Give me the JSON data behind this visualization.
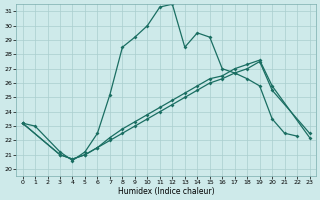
{
  "xlabel": "Humidex (Indice chaleur)",
  "xlim": [
    -0.5,
    23.5
  ],
  "ylim": [
    19.5,
    31.5
  ],
  "xticks": [
    0,
    1,
    2,
    3,
    4,
    5,
    6,
    7,
    8,
    9,
    10,
    11,
    12,
    13,
    14,
    15,
    16,
    17,
    18,
    19,
    20,
    21,
    22,
    23
  ],
  "yticks": [
    20,
    21,
    22,
    23,
    24,
    25,
    26,
    27,
    28,
    29,
    30,
    31
  ],
  "bg_color": "#ceeaea",
  "grid_color": "#aacece",
  "line_color": "#1a6e62",
  "line1_x": [
    0,
    1,
    3,
    4,
    5,
    6,
    7,
    8,
    9,
    10,
    11,
    12,
    13,
    14,
    15,
    16,
    17,
    18,
    19,
    20,
    21,
    22
  ],
  "line1_y": [
    23.2,
    23.0,
    21.2,
    20.6,
    21.2,
    22.5,
    25.2,
    28.5,
    29.2,
    30.0,
    31.3,
    31.5,
    28.5,
    29.5,
    29.2,
    27.0,
    26.7,
    26.3,
    25.8,
    23.5,
    22.5,
    22.3
  ],
  "line2_x": [
    0,
    3,
    4,
    5,
    6,
    7,
    8,
    9,
    10,
    11,
    12,
    13,
    14,
    15,
    16,
    17,
    18,
    19,
    20,
    23
  ],
  "line2_y": [
    23.2,
    21.0,
    20.7,
    21.0,
    21.5,
    22.2,
    22.8,
    23.3,
    23.8,
    24.3,
    24.8,
    25.3,
    25.8,
    26.3,
    26.5,
    27.0,
    27.3,
    27.6,
    25.8,
    22.2
  ],
  "line3_x": [
    0,
    3,
    4,
    5,
    6,
    7,
    8,
    9,
    10,
    11,
    12,
    13,
    14,
    15,
    16,
    17,
    18,
    19,
    20,
    23
  ],
  "line3_y": [
    23.2,
    21.0,
    20.7,
    21.0,
    21.5,
    22.0,
    22.5,
    23.0,
    23.5,
    24.0,
    24.5,
    25.0,
    25.5,
    26.0,
    26.3,
    26.7,
    27.0,
    27.5,
    25.5,
    22.5
  ]
}
